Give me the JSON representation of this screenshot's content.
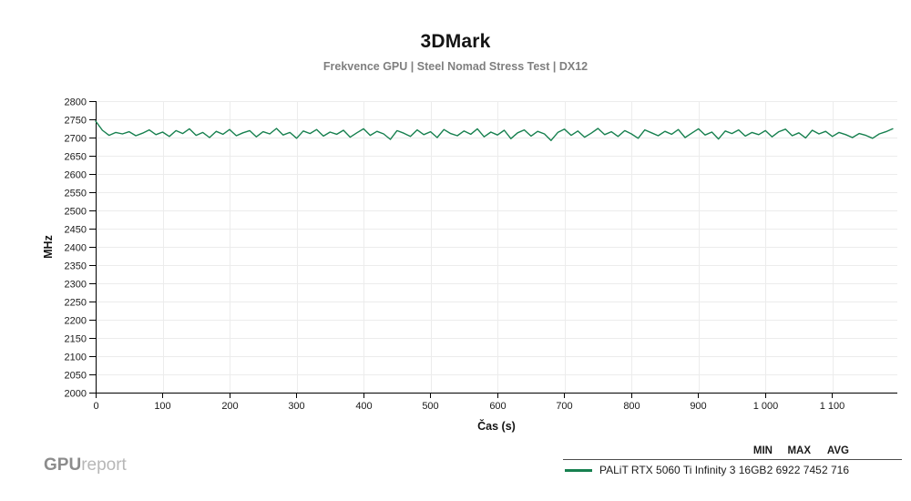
{
  "header": {
    "title": "3DMark",
    "subtitle": "Frekvence GPU | Steel Nomad Stress Test | DX12"
  },
  "footer": {
    "logo_bold": "GPU",
    "logo_light": "report"
  },
  "legend": {
    "columns": [
      "MIN",
      "MAX",
      "AVG"
    ],
    "series": [
      {
        "name": "PALiT RTX 5060 Ti Infinity 3 16GB",
        "min": "2 692",
        "max": "2 745",
        "avg": "2 716",
        "color": "#17804f"
      }
    ]
  },
  "colors": {
    "line_green": "#17804f",
    "grid": "#ececec",
    "axis": "#000000",
    "tick_label": "#1a1a1a",
    "subtitle_gray": "#7f7f7f"
  },
  "chart_data": {
    "type": "line",
    "title": "3DMark",
    "subtitle": "Frekvence GPU | Steel Nomad Stress Test | DX12",
    "xlabel": "Čas (s)",
    "ylabel": "MHz",
    "xlim": [
      0,
      1197
    ],
    "ylim": [
      2000,
      2800
    ],
    "xticks": [
      0,
      100,
      200,
      300,
      400,
      500,
      600,
      700,
      800,
      900,
      1000,
      1100
    ],
    "xtick_labels": [
      "0",
      "100",
      "200",
      "300",
      "400",
      "500",
      "600",
      "700",
      "800",
      "900",
      "1 000",
      "1 100"
    ],
    "ytick_min": 2000,
    "ytick_max": 2800,
    "ytick_step": 50,
    "grid": true,
    "legend_position": "bottom-right",
    "series": [
      {
        "name": "PALiT RTX 5060 Ti Infinity 3 16GB",
        "color": "#17804f",
        "stats": {
          "min": 2692,
          "max": 2745,
          "avg": 2716
        },
        "x_start": 0,
        "x_step": 10,
        "y_values": [
          2745,
          2720,
          2706,
          2714,
          2710,
          2716,
          2705,
          2712,
          2721,
          2708,
          2715,
          2703,
          2719,
          2711,
          2724,
          2706,
          2714,
          2700,
          2717,
          2709,
          2722,
          2705,
          2713,
          2719,
          2702,
          2716,
          2710,
          2725,
          2707,
          2714,
          2698,
          2718,
          2711,
          2722,
          2704,
          2715,
          2709,
          2720,
          2701,
          2713,
          2724,
          2706,
          2717,
          2710,
          2695,
          2719,
          2712,
          2703,
          2721,
          2708,
          2716,
          2700,
          2722,
          2711,
          2705,
          2718,
          2709,
          2724,
          2702,
          2715,
          2707,
          2720,
          2697,
          2713,
          2721,
          2704,
          2717,
          2710,
          2692,
          2714,
          2723,
          2706,
          2718,
          2701,
          2712,
          2725,
          2708,
          2716,
          2703,
          2719,
          2710,
          2698,
          2721,
          2713,
          2705,
          2717,
          2709,
          2722,
          2700,
          2712,
          2724,
          2707,
          2715,
          2696,
          2718,
          2711,
          2721,
          2704,
          2714,
          2708,
          2719,
          2702,
          2716,
          2723,
          2705,
          2713,
          2699,
          2720,
          2710,
          2717,
          2703,
          2714,
          2708,
          2700,
          2711,
          2706,
          2698,
          2710,
          2716,
          2724
        ]
      }
    ]
  }
}
